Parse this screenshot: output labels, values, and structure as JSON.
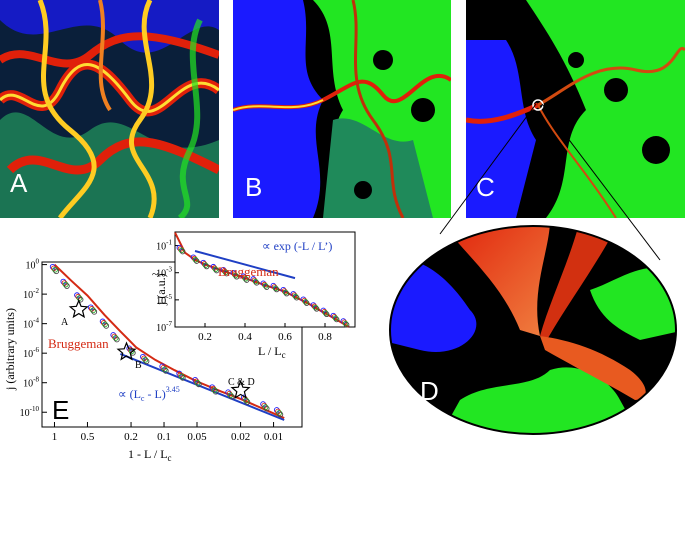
{
  "panels": {
    "a_label": "A",
    "b_label": "B",
    "c_label": "C",
    "d_label": "D"
  },
  "colors": {
    "blue_cluster": "#1a1aff",
    "green_cluster": "#22e622",
    "teal_cluster": "#1f8a5a",
    "current_red": "#e0200a",
    "current_yellow": "#ffdd33",
    "fit_blue": "#1f3fc4",
    "bruggeman_red": "#d42a14"
  },
  "chart_data": [
    {
      "type": "scatter",
      "panel": "E",
      "panel_label": "E",
      "xlabel": "1 - L / L",
      "xlabel_sub": "c",
      "ylabel": "j  (arbitrary units)",
      "x_scale": "log-reversed",
      "xlim": [
        1.3,
        0.0055
      ],
      "ylim": [
        1e-11,
        1.5
      ],
      "x_ticks": [
        "1",
        "0.5",
        "0.2",
        "0.1",
        "0.05",
        "0.02",
        "0.01"
      ],
      "y_ticks": [
        "10",
        "10",
        "10",
        "10",
        "10",
        "10"
      ],
      "y_tick_exponents": [
        "0",
        "-2",
        "-4",
        "-6",
        "-8",
        "-10"
      ],
      "series": [
        {
          "name": "Bruggeman",
          "style": "line",
          "color": "#d42a14",
          "x": [
            1,
            0.7,
            0.5,
            0.35,
            0.25,
            0.18,
            0.12,
            0.08,
            0.05,
            0.03,
            0.02,
            0.012,
            0.008
          ],
          "y": [
            1,
            0.08,
            0.008,
            0.0004,
            3e-05,
            2.5e-06,
            3.5e-07,
            7e-08,
            1.2e-08,
            2.5e-09,
            8e-10,
            1.5e-10,
            4e-11
          ]
        },
        {
          "name": "∝ (L - L)",
          "style": "line",
          "color": "#1f3fc4",
          "x": [
            0.25,
            0.008
          ],
          "y": [
            9e-07,
            3e-11
          ]
        },
        {
          "name": "data",
          "style": "points",
          "x": [
            1,
            0.8,
            0.6,
            0.45,
            0.35,
            0.28,
            0.2,
            0.15,
            0.1,
            0.07,
            0.05,
            0.035,
            0.025,
            0.018,
            0.012,
            0.009
          ],
          "y": [
            0.5,
            0.05,
            0.006,
            0.0009,
            0.0001,
            1.2e-05,
            1.5e-06,
            4e-07,
            9e-08,
            3e-08,
            1.1e-08,
            3.5e-09,
            1.6e-09,
            7e-10,
            2.5e-10,
            1e-10
          ]
        }
      ],
      "annotations": {
        "bruggeman": "Bruggeman",
        "power_law": "∝ (L",
        "power_law_sub": "c",
        "power_law_tail": " - L)",
        "exponent": "3.45",
        "star_a": "A",
        "star_b": "B",
        "star_cd": "C & D"
      },
      "stars": [
        {
          "label": "A",
          "x": 0.6,
          "y": 0.0009
        },
        {
          "label": "B",
          "x": 0.22,
          "y": 1.2e-06
        },
        {
          "label": "C & D",
          "x": 0.02,
          "y": 3e-09
        }
      ]
    },
    {
      "type": "scatter",
      "panel": "E-inset",
      "xlabel": "L / L",
      "xlabel_sub": "c",
      "ylabel": "j (a.u.)",
      "ylabel_symbol": "~",
      "x_scale": "linear",
      "y_scale": "log",
      "xlim": [
        0.05,
        0.95
      ],
      "ylim": [
        1e-07,
        1
      ],
      "x_ticks": [
        "0.2",
        "0.4",
        "0.6",
        "0.8"
      ],
      "y_ticks": [
        "10",
        "10",
        "10",
        "10"
      ],
      "y_tick_exponents": [
        "-1",
        "-3",
        "-5",
        "-7"
      ],
      "series": [
        {
          "name": "Bruggeman",
          "style": "line",
          "color": "#d42a14",
          "x": [
            0.05,
            0.1,
            0.15,
            0.2,
            0.3,
            0.4,
            0.5,
            0.6,
            0.68,
            0.72,
            0.78,
            0.85,
            0.92
          ],
          "y": [
            0.9,
            0.03,
            0.009,
            0.004,
            0.0012,
            0.0004,
            0.00012,
            4e-05,
            1e-05,
            5e-06,
            1.5e-06,
            4e-07,
            1e-07
          ]
        },
        {
          "name": "∝ exp (-L / L')",
          "style": "line",
          "color": "#1f3fc4",
          "x": [
            0.15,
            0.65
          ],
          "y": [
            0.04,
            0.0004
          ]
        },
        {
          "name": "data",
          "style": "points",
          "x": [
            0.08,
            0.15,
            0.2,
            0.25,
            0.3,
            0.35,
            0.4,
            0.45,
            0.5,
            0.55,
            0.6,
            0.65,
            0.7,
            0.75,
            0.8,
            0.85,
            0.9
          ],
          "y": [
            0.05,
            0.01,
            0.004,
            0.002,
            0.0012,
            0.0007,
            0.0004,
            0.00025,
            0.00012,
            8e-05,
            4e-05,
            2e-05,
            8e-06,
            3e-06,
            1.2e-06,
            5e-07,
            2e-07
          ]
        }
      ],
      "annotations": {
        "bruggeman": "Bruggeman",
        "exp_law": "∝ exp (-L / L’)"
      }
    }
  ]
}
